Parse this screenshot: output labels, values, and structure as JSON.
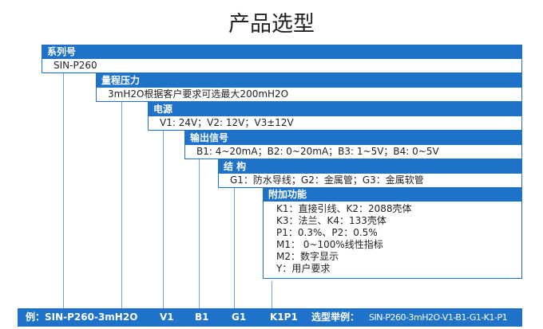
{
  "title": "产品选型",
  "sections": [
    {
      "header": "系列号",
      "values": [
        "SIN-P260"
      ]
    },
    {
      "header": "量程压力",
      "values": [
        "3mH2O根据客户要求可选最大200mH2O"
      ]
    },
    {
      "header": "电源",
      "values": [
        "V1: 24V；V2: 12V；V3±12V"
      ]
    },
    {
      "header": "输出信号",
      "values": [
        "B1: 4~20mA；B2: 0~20mA；B3: 1~5V；B4: 0~5V"
      ]
    },
    {
      "header": "结  构",
      "values": [
        "G1：防水导线；G2：金属管；G3：金属软管"
      ]
    },
    {
      "header": "附加功能",
      "values": [
        "K1：直接引线、K2：2088壳体",
        "K3：法兰、K4：133壳体",
        "P1：0.3%、P2：0.5%",
        "M1： 0~100%线性指标",
        "M2：数字显示",
        "Y：用户要求"
      ]
    }
  ],
  "example": {
    "label": "例：SIN-P260-3mH2O",
    "v": "V1",
    "b": "B1",
    "g": "G1",
    "kp": "K1P1",
    "sample_label": "选型举例：",
    "sample": "SIN-P260-3mH2O-V1-B1-G1-K1-P1"
  },
  "colors": {
    "accent": "#1f72c9"
  }
}
